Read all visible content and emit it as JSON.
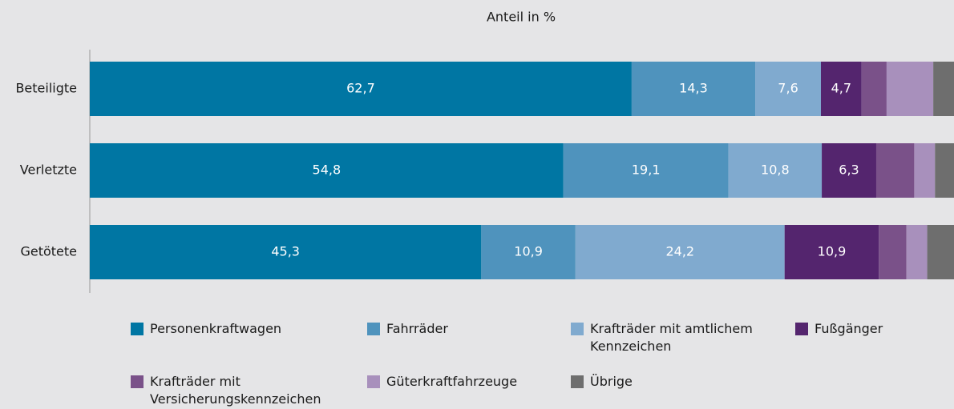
{
  "chart_data": {
    "type": "stacked_bar_horizontal",
    "xlabel": "Anteil in %",
    "categories": [
      "Beteiligte",
      "Verletzte",
      "Getötete"
    ],
    "xlim": [
      0,
      100
    ],
    "series": [
      {
        "name": "Personenkraftwagen",
        "color": "#0076a3",
        "values": [
          62.7,
          54.8,
          45.3
        ],
        "value_labels": [
          "62,7",
          "54,8",
          "45,3"
        ]
      },
      {
        "name": "Fahrräder",
        "color": "#4f93bd",
        "values": [
          14.3,
          19.1,
          10.9
        ],
        "value_labels": [
          "14,3",
          "19,1",
          "10,9"
        ]
      },
      {
        "name": "Krafträder mit amtlichem Kennzeichen",
        "color": "#80aacf",
        "values": [
          7.6,
          10.8,
          24.2
        ],
        "value_labels": [
          "7,6",
          "10,8",
          "24,2"
        ]
      },
      {
        "name": "Fußgänger",
        "color": "#54256e",
        "values": [
          4.7,
          6.3,
          10.9
        ],
        "value_labels": [
          "4,7",
          "6,3",
          "10,9"
        ]
      },
      {
        "name": "Krafträder mit Versicherungskennzeichen",
        "color": "#7a5189",
        "values": [
          2.9,
          4.4,
          3.2
        ]
      },
      {
        "name": "Güterkraftfahrzeuge",
        "color": "#a890bc",
        "values": [
          5.4,
          2.4,
          2.4
        ]
      },
      {
        "name": "Übrige",
        "color": "#6e6e6e",
        "values": [
          2.4,
          2.2,
          3.1
        ]
      }
    ]
  }
}
